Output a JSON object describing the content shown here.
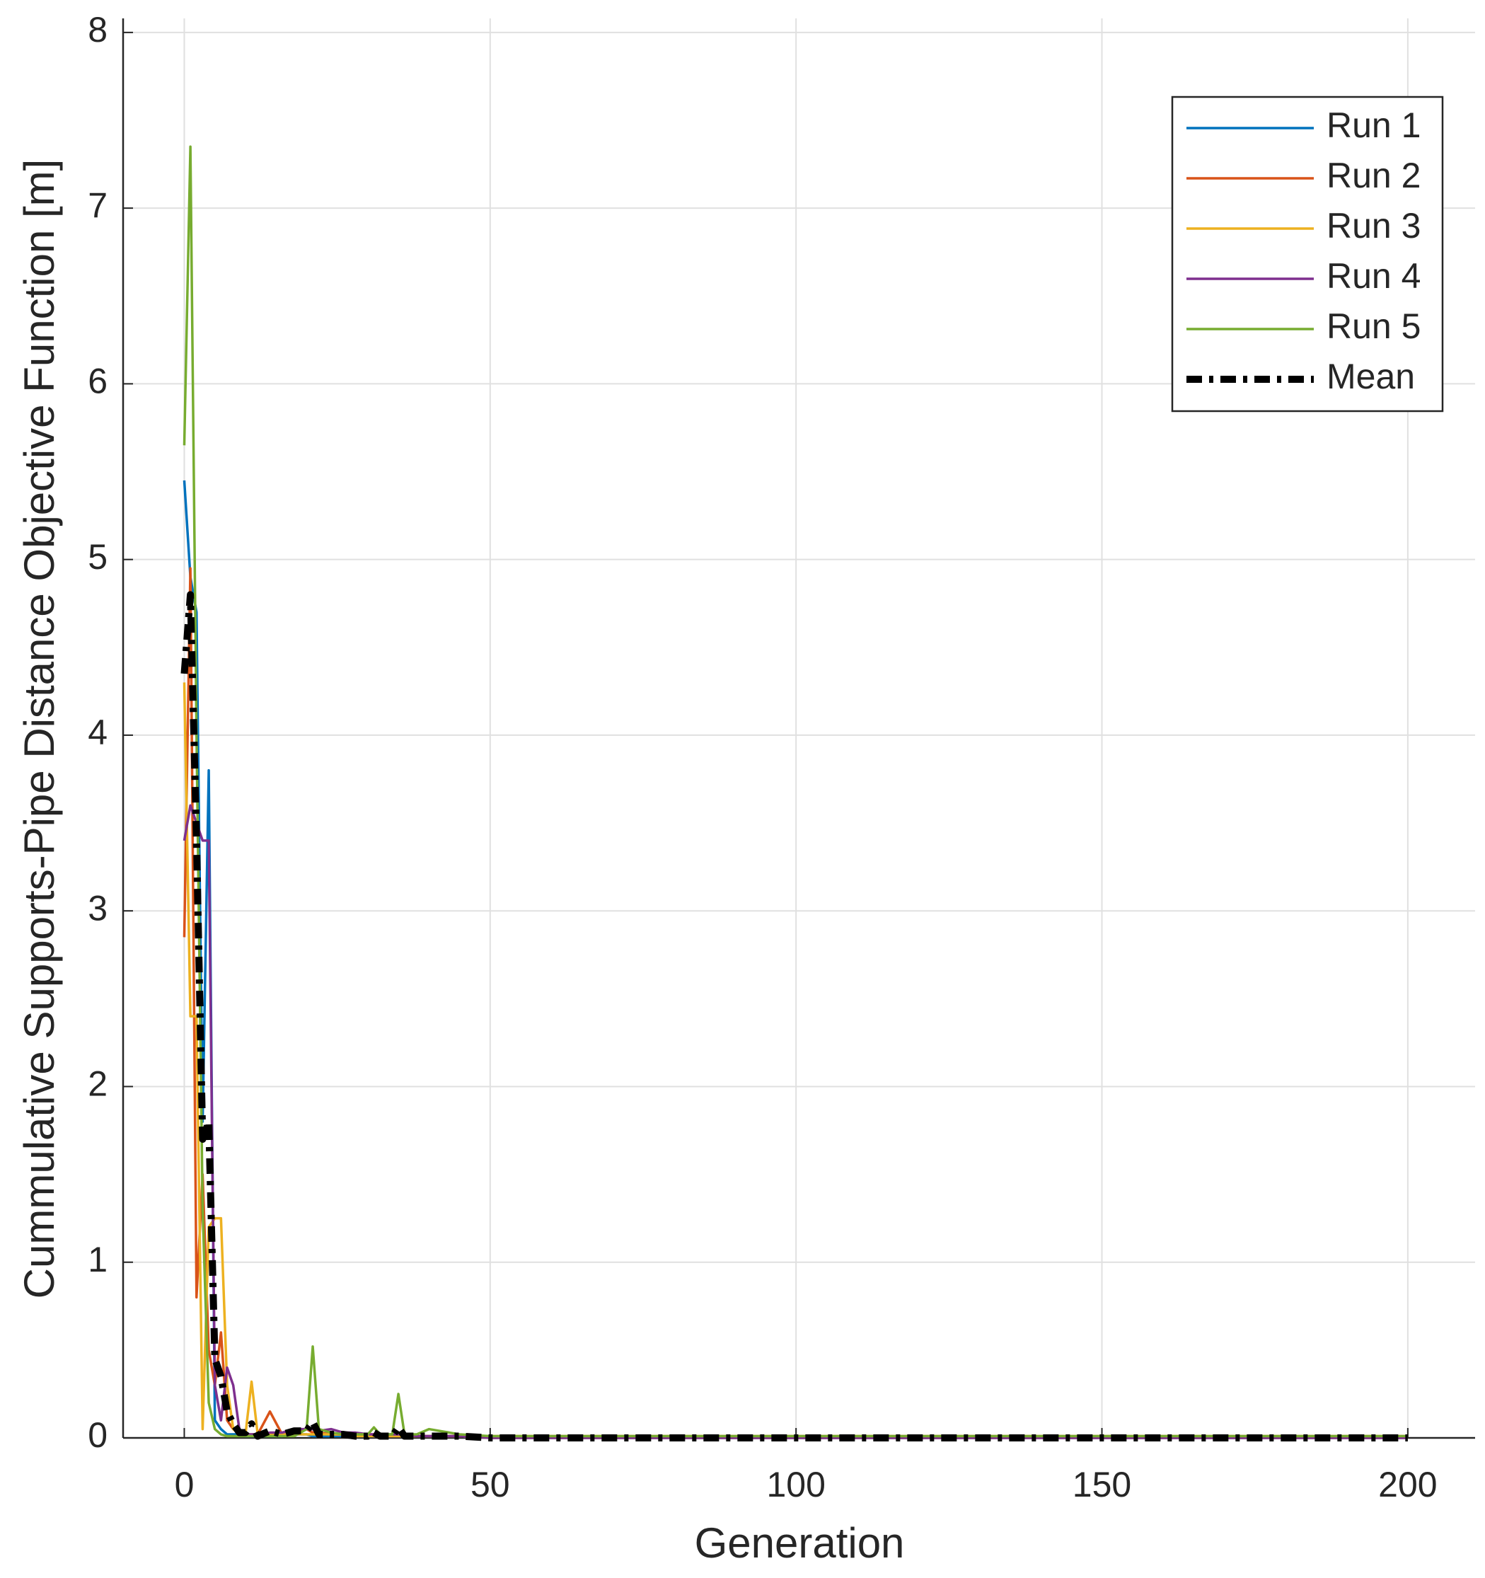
{
  "chart_data": {
    "type": "line",
    "xlabel": "Generation",
    "ylabel": "Cummulative Supports-Pipe Distance Objective Function [m]",
    "x": [
      0,
      1,
      2,
      3,
      4,
      5,
      6,
      7,
      8,
      9,
      10,
      11,
      12,
      14,
      16,
      18,
      20,
      21,
      22,
      24,
      26,
      28,
      30,
      31,
      32,
      34,
      35,
      36,
      38,
      40,
      45,
      50,
      100,
      150,
      200
    ],
    "series": [
      {
        "name": "Run 1",
        "color": "#0072bd",
        "values": [
          5.45,
          4.9,
          4.7,
          1.8,
          3.8,
          0.1,
          0.05,
          0.02,
          0.02,
          0.02,
          0.01,
          0.01,
          0.01,
          0.01,
          0.01,
          0.02,
          0.02,
          0.01,
          0.01,
          0.01,
          0.01,
          0.01,
          0.01,
          0.01,
          0.01,
          0.01,
          0.01,
          0.01,
          0.01,
          0.01,
          0.01,
          0,
          0,
          0,
          0
        ]
      },
      {
        "name": "Run 2",
        "color": "#d95319",
        "values": [
          2.85,
          4.95,
          0.8,
          1.5,
          0.5,
          0.3,
          0.6,
          0.1,
          0.05,
          0.03,
          0.02,
          0.02,
          0.02,
          0.15,
          0.02,
          0.04,
          0.05,
          0.03,
          0.03,
          0.02,
          0.02,
          0.02,
          0.02,
          0.02,
          0.01,
          0.01,
          0.01,
          0.01,
          0.01,
          0.01,
          0.01,
          0.01,
          0.01,
          0.01,
          0.01
        ]
      },
      {
        "name": "Run 3",
        "color": "#edb120",
        "values": [
          4.3,
          2.4,
          2.4,
          0.05,
          1.2,
          1.25,
          1.25,
          0.3,
          0.05,
          0.02,
          0.02,
          0.32,
          0.02,
          0.02,
          0.02,
          0.02,
          0.02,
          0.02,
          0.02,
          0.02,
          0.02,
          0.01,
          0.01,
          0.01,
          0.01,
          0.01,
          0.01,
          0.01,
          0.01,
          0.01,
          0.01,
          0,
          0,
          0,
          0
        ]
      },
      {
        "name": "Run 4",
        "color": "#7e2f8e",
        "values": [
          3.4,
          3.6,
          3.5,
          3.4,
          3.4,
          0.3,
          0.1,
          0.4,
          0.3,
          0.05,
          0.02,
          0.02,
          0.02,
          0.03,
          0.03,
          0.05,
          0.05,
          0.05,
          0.04,
          0.05,
          0.03,
          0.03,
          0.02,
          0.02,
          0.02,
          0.02,
          0.02,
          0.02,
          0.01,
          0.01,
          0.01,
          0,
          0,
          0,
          0
        ]
      },
      {
        "name": "Run 5",
        "color": "#77ac30",
        "values": [
          5.65,
          7.35,
          4.0,
          1.3,
          0.2,
          0.05,
          0.02,
          0.01,
          0.01,
          0.01,
          0.01,
          0.01,
          0.01,
          0.01,
          0.01,
          0.01,
          0.05,
          0.52,
          0.05,
          0.03,
          0.02,
          0.02,
          0.02,
          0.06,
          0.02,
          0.02,
          0.25,
          0.02,
          0.02,
          0.05,
          0.02,
          0.01,
          0.01,
          0.01,
          0.01
        ]
      },
      {
        "name": "Mean",
        "color": "#000000",
        "dash": "dashdot",
        "values": [
          4.35,
          4.8,
          3.4,
          1.7,
          1.8,
          0.45,
          0.35,
          0.15,
          0.08,
          0.03,
          0.03,
          0.08,
          0.01,
          0.04,
          0.02,
          0.04,
          0.04,
          0.09,
          0.02,
          0.02,
          0.02,
          0.01,
          0.01,
          0.03,
          0.01,
          0.01,
          0.06,
          0.01,
          0.01,
          0.01,
          0.01,
          0,
          0,
          0,
          0
        ]
      }
    ],
    "xlim": [
      -10,
      211
    ],
    "ylim": [
      0,
      8.08
    ],
    "xticks": [
      0,
      50,
      100,
      150,
      200
    ],
    "yticks": [
      0,
      1,
      2,
      3,
      4,
      5,
      6,
      7,
      8
    ],
    "grid": true,
    "legend": "northeast"
  }
}
